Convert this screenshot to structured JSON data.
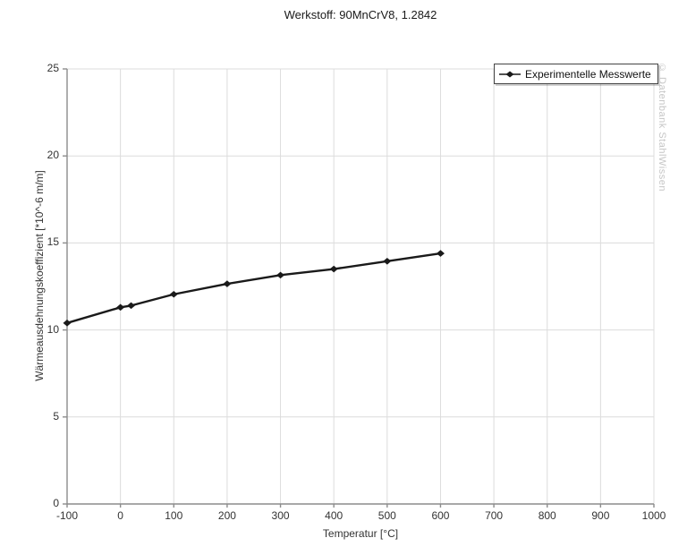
{
  "header": {
    "title": "Werkstoff: 90MnCrV8, 1.2842"
  },
  "watermark": {
    "text": "© Datenbank StahlWissen",
    "color": "#c6c6c6"
  },
  "legend": {
    "label": "Experimentelle Messwerte",
    "marker_icon": "line-diamond-marker"
  },
  "colors": {
    "grid": "#dcdcdc",
    "axis": "#8c8c8c",
    "line": "#1a1a1a",
    "tick_label": "#333333"
  },
  "chart_data": {
    "type": "line",
    "title": "Werkstoff: 90MnCrV8, 1.2842",
    "xlabel": "Temperatur [°C]",
    "ylabel": "Wärmeausdehnungskoeffizient [*10^-6 m/m]",
    "xlim": [
      -100,
      1000
    ],
    "ylim": [
      0,
      25
    ],
    "x_ticks": [
      -100,
      0,
      100,
      200,
      300,
      400,
      500,
      600,
      700,
      800,
      900,
      1000
    ],
    "y_ticks": [
      0,
      5,
      10,
      15,
      20,
      25
    ],
    "grid": true,
    "legend_position": "top-right",
    "series": [
      {
        "name": "Experimentelle Messwerte",
        "color": "#1a1a1a",
        "marker": "diamond",
        "x": [
          -100,
          0,
          20,
          100,
          200,
          300,
          400,
          500,
          600
        ],
        "y": [
          10.4,
          11.3,
          11.4,
          12.05,
          12.65,
          13.15,
          13.5,
          13.95,
          14.4
        ]
      }
    ]
  }
}
